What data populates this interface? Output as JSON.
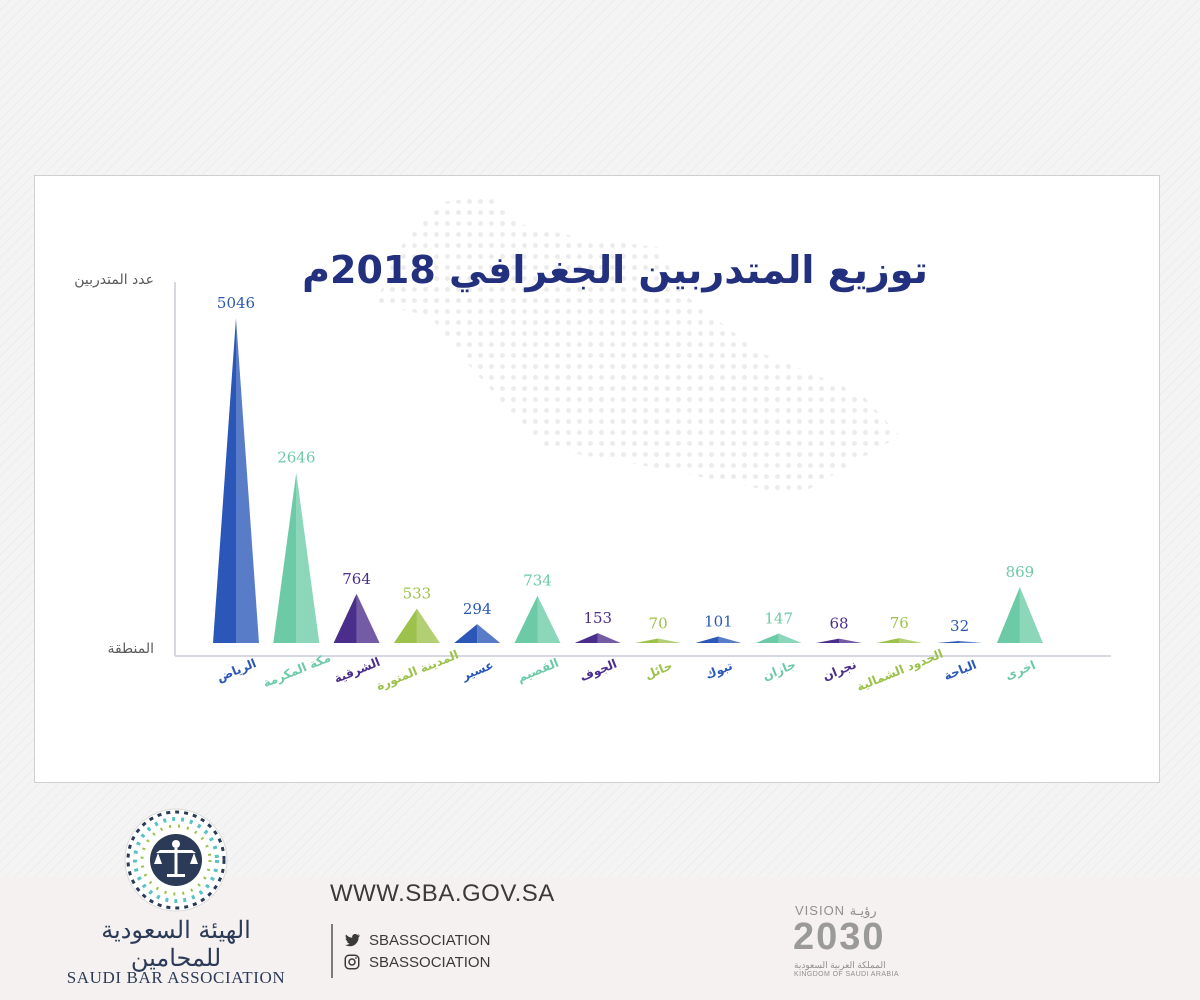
{
  "chart_data": {
    "type": "bar",
    "title": "توزيع المتدربين الجغرافي 2018م",
    "ylabel": "عدد المتدربين",
    "xlabel": "المنطقة",
    "ylim": [
      0,
      5046
    ],
    "grid": false,
    "categories": [
      "الرياض",
      "مكة المكرمة",
      "الشرقية",
      "المدينة المنورة",
      "عسير",
      "القصيم",
      "الجوف",
      "حائل",
      "تبوك",
      "جازان",
      "نجران",
      "الحدود الشمالية",
      "الباحة",
      "اخرى"
    ],
    "values": [
      5046,
      2646,
      764,
      533,
      294,
      734,
      153,
      70,
      101,
      147,
      68,
      76,
      32,
      869
    ],
    "colors": [
      "#2a57b8",
      "#6ccaa6",
      "#4b2e8c",
      "#9cc24c",
      "#2a57b8",
      "#6ccaa6",
      "#4b2e8c",
      "#9cc24c",
      "#2a57b8",
      "#6ccaa6",
      "#4b2e8c",
      "#9cc24c",
      "#2a57b8",
      "#6ccaa6"
    ]
  },
  "footer": {
    "website": "WWW.SBA.GOV.SA",
    "twitter": "SBASSOCIATION",
    "instagram": "SBASSOCIATION",
    "org_name_ar": "الهيئة السعودية للمحامين",
    "org_name_en": "SAUDI BAR ASSOCIATION",
    "vision_top": "VISION رؤيـة",
    "vision_year": "2030",
    "vision_ar": "المملكة العربية السعودية",
    "vision_en": "KINGDOM OF SAUDI ARABIA"
  },
  "icons": {
    "twitter": "twitter-bird-icon",
    "instagram": "instagram-camera-icon",
    "emblem": "scales-of-justice-emblem",
    "vision": "vision-2030-logo"
  }
}
